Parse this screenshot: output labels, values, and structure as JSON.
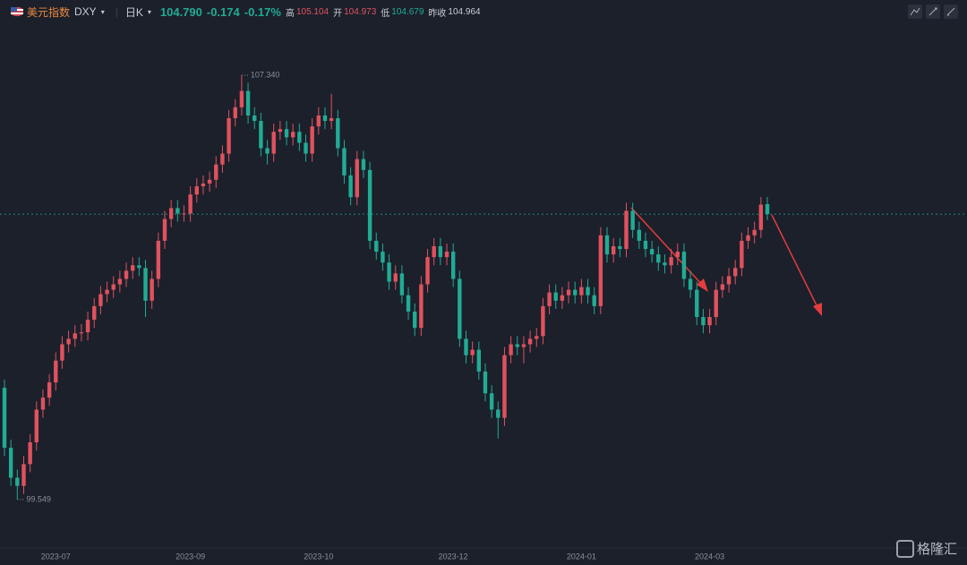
{
  "header": {
    "name": "美元指数",
    "symbol": "DXY",
    "period": "日K",
    "last": "104.790",
    "change": "-0.174",
    "change_pct": "-0.17%",
    "high_label": "高",
    "high": "105.104",
    "open_label": "开",
    "open": "104.973",
    "low_label": "低",
    "low": "104.679",
    "prev_label": "昨收",
    "prev": "104.964"
  },
  "watermark": "格隆汇",
  "chart_data": {
    "type": "candlestick",
    "categories": [
      null,
      null,
      null,
      null,
      null,
      null,
      null,
      null,
      "2023-07",
      null,
      null,
      null,
      null,
      null,
      null,
      null,
      null,
      null,
      null,
      null,
      null,
      null,
      null,
      null,
      null,
      null,
      null,
      null,
      null,
      "2023-09",
      null,
      null,
      null,
      null,
      null,
      null,
      null,
      null,
      null,
      null,
      null,
      null,
      null,
      null,
      null,
      null,
      null,
      null,
      null,
      "2023-10",
      null,
      null,
      null,
      null,
      null,
      null,
      null,
      null,
      null,
      null,
      null,
      null,
      null,
      null,
      null,
      null,
      null,
      null,
      null,
      null,
      "2023-12",
      null,
      null,
      null,
      null,
      null,
      null,
      null,
      null,
      null,
      null,
      null,
      null,
      null,
      null,
      null,
      null,
      null,
      null,
      null,
      "2024-01",
      null,
      null,
      null,
      null,
      null,
      null,
      null,
      null,
      null,
      null,
      null,
      null,
      null,
      null,
      null,
      null,
      null,
      null,
      null,
      "2024-03",
      null,
      null,
      null,
      null,
      null,
      null,
      null,
      null,
      null
    ],
    "open": [
      101.6,
      100.5,
      99.95,
      99.8,
      100.2,
      100.6,
      101.2,
      101.42,
      101.7,
      102.1,
      102.4,
      102.5,
      102.6,
      102.62,
      102.85,
      103.1,
      103.32,
      103.4,
      103.5,
      103.6,
      103.75,
      103.85,
      103.8,
      103.2,
      103.6,
      104.3,
      104.7,
      104.9,
      104.8,
      104.8,
      105.15,
      105.3,
      105.35,
      105.42,
      105.7,
      105.9,
      106.55,
      106.75,
      107.05,
      106.6,
      106.5,
      106.0,
      105.9,
      106.3,
      106.35,
      106.2,
      106.3,
      106.1,
      105.9,
      106.4,
      106.6,
      106.5,
      106.55,
      106.0,
      105.5,
      105.1,
      105.8,
      105.6,
      104.3,
      104.1,
      103.9,
      103.55,
      103.7,
      103.3,
      103.0,
      102.7,
      103.5,
      104.0,
      104.2,
      104.0,
      104.1,
      103.6,
      102.5,
      102.2,
      102.3,
      101.9,
      101.5,
      101.2,
      101.05,
      102.2,
      102.4,
      102.35,
      102.4,
      102.5,
      102.55,
      103.1,
      103.35,
      103.2,
      103.3,
      103.4,
      103.3,
      103.45,
      103.3,
      103.1,
      104.4,
      104.05,
      104.2,
      104.15,
      104.85,
      104.5,
      104.3,
      104.15,
      104.05,
      103.9,
      103.85,
      104.0,
      104.1,
      103.6,
      103.4,
      102.9,
      102.75,
      102.9,
      103.4,
      103.5,
      103.65,
      103.8,
      104.3,
      104.4,
      104.5,
      104.973
    ],
    "high": [
      101.75,
      100.65,
      100.1,
      100.35,
      100.75,
      101.35,
      101.57,
      101.85,
      102.25,
      102.55,
      102.65,
      102.75,
      102.77,
      103.0,
      103.25,
      103.47,
      103.55,
      103.65,
      103.75,
      103.9,
      104.0,
      104.0,
      103.95,
      103.75,
      104.45,
      104.85,
      105.05,
      105.05,
      104.95,
      105.3,
      105.45,
      105.5,
      105.57,
      105.85,
      106.05,
      106.7,
      106.9,
      107.34,
      107.2,
      106.75,
      106.65,
      106.15,
      106.45,
      106.5,
      106.5,
      106.45,
      106.45,
      106.25,
      106.55,
      106.75,
      106.75,
      107.0,
      106.7,
      106.15,
      105.65,
      105.95,
      105.95,
      105.75,
      104.45,
      104.25,
      104.05,
      103.85,
      103.85,
      103.45,
      103.15,
      103.65,
      104.15,
      104.35,
      104.35,
      104.25,
      104.25,
      103.75,
      102.65,
      102.45,
      102.45,
      102.05,
      101.65,
      101.35,
      102.35,
      102.55,
      102.55,
      102.55,
      102.65,
      102.7,
      103.25,
      103.5,
      103.5,
      103.45,
      103.55,
      103.55,
      103.6,
      103.6,
      103.45,
      104.55,
      104.55,
      104.35,
      104.35,
      105.0,
      105.0,
      104.65,
      104.45,
      104.3,
      104.2,
      104.05,
      104.15,
      104.25,
      104.25,
      103.75,
      103.55,
      103.05,
      103.05,
      103.55,
      103.65,
      103.8,
      103.95,
      104.45,
      104.55,
      104.65,
      105.1,
      105.104
    ],
    "low": [
      100.35,
      99.8,
      99.549,
      99.65,
      100.05,
      100.45,
      101.05,
      101.27,
      101.55,
      101.95,
      102.25,
      102.35,
      102.45,
      102.47,
      102.7,
      102.95,
      103.17,
      103.25,
      103.35,
      103.45,
      103.6,
      103.65,
      102.9,
      103.05,
      103.45,
      104.15,
      104.55,
      104.65,
      104.65,
      104.65,
      105.0,
      105.15,
      105.2,
      105.27,
      105.55,
      105.75,
      106.4,
      106.6,
      106.45,
      106.35,
      105.85,
      105.7,
      105.75,
      106.15,
      106.05,
      106.05,
      105.95,
      105.75,
      105.75,
      106.25,
      106.35,
      106.35,
      105.85,
      105.35,
      104.95,
      104.95,
      105.45,
      104.15,
      103.95,
      103.75,
      103.4,
      103.4,
      103.15,
      102.85,
      102.55,
      102.55,
      103.35,
      103.85,
      103.85,
      103.85,
      103.45,
      102.35,
      102.05,
      102.05,
      101.75,
      101.35,
      101.05,
      100.67,
      100.9,
      102.05,
      102.2,
      102.05,
      102.25,
      102.35,
      102.4,
      102.95,
      103.05,
      103.05,
      103.15,
      103.15,
      103.15,
      103.15,
      102.95,
      102.95,
      103.9,
      103.9,
      104.0,
      104.0,
      104.35,
      104.15,
      104.0,
      103.9,
      103.75,
      103.7,
      103.7,
      103.85,
      103.45,
      103.25,
      102.75,
      102.6,
      102.6,
      102.75,
      103.25,
      103.35,
      103.5,
      103.65,
      104.15,
      104.25,
      104.35,
      104.679
    ],
    "close": [
      100.5,
      99.95,
      99.8,
      100.2,
      100.6,
      101.2,
      101.42,
      101.7,
      102.1,
      102.4,
      102.5,
      102.6,
      102.62,
      102.85,
      103.1,
      103.32,
      103.4,
      103.5,
      103.6,
      103.75,
      103.85,
      103.8,
      103.2,
      103.6,
      104.3,
      104.7,
      104.9,
      104.8,
      104.8,
      105.15,
      105.3,
      105.35,
      105.42,
      105.7,
      105.9,
      106.55,
      106.75,
      107.05,
      106.6,
      106.5,
      106.0,
      105.9,
      106.3,
      106.35,
      106.2,
      106.3,
      106.1,
      105.9,
      106.4,
      106.6,
      106.5,
      106.55,
      106.0,
      105.5,
      105.1,
      105.8,
      105.6,
      104.3,
      104.1,
      103.9,
      103.55,
      103.7,
      103.3,
      103.0,
      102.7,
      103.5,
      104.0,
      104.2,
      104.0,
      104.1,
      103.6,
      102.5,
      102.2,
      102.3,
      101.9,
      101.5,
      101.2,
      101.05,
      102.2,
      102.4,
      102.35,
      102.4,
      102.5,
      102.55,
      103.1,
      103.35,
      103.2,
      103.3,
      103.4,
      103.3,
      103.45,
      103.3,
      103.1,
      104.4,
      104.05,
      104.2,
      104.15,
      104.85,
      104.5,
      104.3,
      104.15,
      104.05,
      103.9,
      103.85,
      104.0,
      104.1,
      103.6,
      103.4,
      102.9,
      102.75,
      102.9,
      103.4,
      103.5,
      103.65,
      103.8,
      104.3,
      104.4,
      104.5,
      104.964,
      104.79
    ],
    "up_color": "#e0525e",
    "down_color": "#22ab94",
    "ylim": [
      98.66,
      108.26
    ],
    "annotations": [
      "107.340",
      "99.549"
    ]
  }
}
